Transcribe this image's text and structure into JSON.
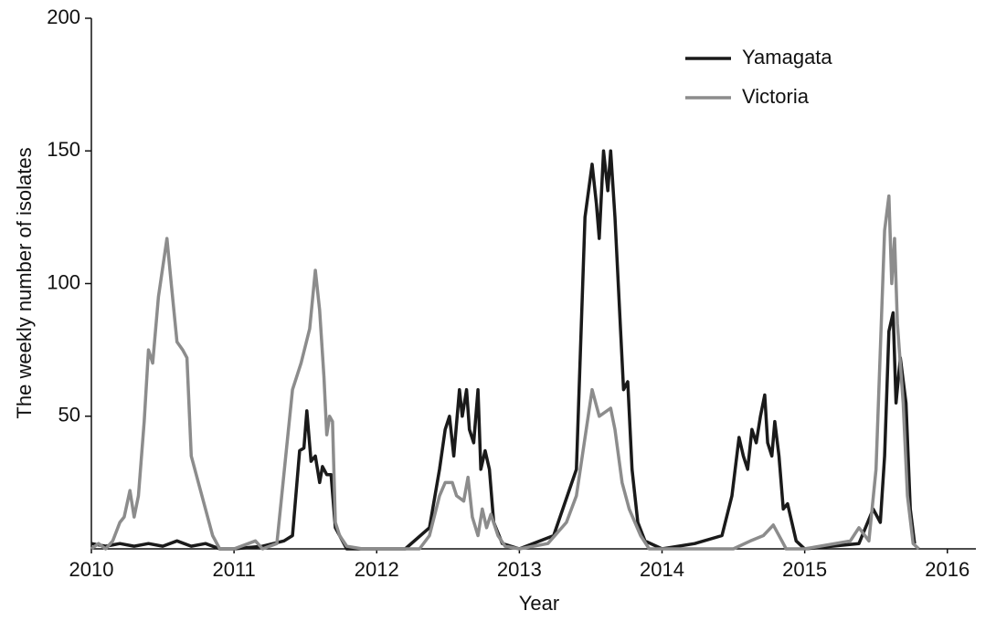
{
  "chart_data": {
    "type": "line",
    "xlabel": "Year",
    "ylabel": "The weekly number of isolates",
    "xlim": [
      2010,
      2016.2
    ],
    "xticks": [
      2010,
      2011,
      2012,
      2013,
      2014,
      2015,
      2016
    ],
    "ylim": [
      0,
      200
    ],
    "yticks": [
      50,
      100,
      150,
      200
    ],
    "legend": "upper right",
    "series": [
      {
        "name": "Yamagata",
        "color": "#1a1a1a",
        "x": [
          2010.0,
          2010.1,
          2010.2,
          2010.3,
          2010.4,
          2010.5,
          2010.6,
          2010.7,
          2010.8,
          2010.9,
          2011.0,
          2011.2,
          2011.35,
          2011.41,
          2011.46,
          2011.49,
          2011.51,
          2011.54,
          2011.57,
          2011.6,
          2011.62,
          2011.65,
          2011.68,
          2011.71,
          2011.74,
          2011.79,
          2012.0,
          2012.2,
          2012.37,
          2012.44,
          2012.48,
          2012.51,
          2012.54,
          2012.58,
          2012.6,
          2012.63,
          2012.65,
          2012.68,
          2012.71,
          2012.73,
          2012.76,
          2012.79,
          2012.82,
          2012.88,
          2013.0,
          2013.24,
          2013.4,
          2013.46,
          2013.51,
          2013.54,
          2013.56,
          2013.59,
          2013.62,
          2013.64,
          2013.67,
          2013.71,
          2013.73,
          2013.76,
          2013.79,
          2013.83,
          2013.88,
          2014.0,
          2014.23,
          2014.42,
          2014.49,
          2014.54,
          2014.57,
          2014.6,
          2014.63,
          2014.66,
          2014.69,
          2014.72,
          2014.74,
          2014.77,
          2014.79,
          2014.82,
          2014.85,
          2014.88,
          2014.94,
          2015.0,
          2015.38,
          2015.48,
          2015.53,
          2015.56,
          2015.59,
          2015.62,
          2015.64,
          2015.67,
          2015.71,
          2015.74,
          2015.77
        ],
        "values": [
          2,
          1,
          2,
          1,
          2,
          1,
          3,
          1,
          2,
          0,
          0,
          1,
          3,
          5,
          37,
          38,
          52,
          33,
          35,
          25,
          31,
          28,
          28,
          8,
          5,
          0,
          0,
          0,
          8,
          30,
          45,
          50,
          35,
          60,
          50,
          60,
          45,
          40,
          60,
          30,
          37,
          30,
          10,
          2,
          0,
          5,
          30,
          125,
          145,
          130,
          117,
          150,
          135,
          150,
          125,
          82,
          60,
          63,
          30,
          10,
          3,
          0,
          2,
          5,
          20,
          42,
          35,
          30,
          45,
          40,
          50,
          58,
          40,
          35,
          48,
          35,
          15,
          17,
          3,
          0,
          2,
          15,
          10,
          35,
          82,
          89,
          55,
          72,
          55,
          15,
          2
        ]
      },
      {
        "name": "Victoria",
        "color": "#8c8c8c",
        "x": [
          2010.0,
          2010.05,
          2010.1,
          2010.15,
          2010.2,
          2010.23,
          2010.27,
          2010.3,
          2010.33,
          2010.37,
          2010.4,
          2010.43,
          2010.47,
          2010.53,
          2010.56,
          2010.6,
          2010.64,
          2010.67,
          2010.7,
          2010.75,
          2010.8,
          2010.85,
          2010.9,
          2011.0,
          2011.15,
          2011.2,
          2011.3,
          2011.41,
          2011.47,
          2011.53,
          2011.57,
          2011.6,
          2011.63,
          2011.65,
          2011.67,
          2011.69,
          2011.71,
          2011.74,
          2011.79,
          2011.9,
          2012.0,
          2012.3,
          2012.37,
          2012.44,
          2012.48,
          2012.53,
          2012.56,
          2012.61,
          2012.64,
          2012.67,
          2012.71,
          2012.74,
          2012.77,
          2012.8,
          2012.85,
          2012.9,
          2013.0,
          2013.2,
          2013.33,
          2013.4,
          2013.51,
          2013.56,
          2013.64,
          2013.67,
          2013.72,
          2013.77,
          2013.85,
          2013.91,
          2014.0,
          2014.5,
          2014.62,
          2014.71,
          2014.78,
          2014.84,
          2014.87,
          2015.0,
          2015.32,
          2015.38,
          2015.45,
          2015.5,
          2015.56,
          2015.59,
          2015.61,
          2015.63,
          2015.65,
          2015.69,
          2015.72,
          2015.76,
          2015.8
        ],
        "values": [
          0,
          2,
          0,
          3,
          10,
          12,
          22,
          12,
          20,
          48,
          75,
          70,
          95,
          117,
          100,
          78,
          75,
          72,
          35,
          25,
          15,
          5,
          0,
          0,
          3,
          0,
          2,
          60,
          70,
          83,
          105,
          90,
          65,
          43,
          50,
          48,
          10,
          5,
          1,
          0,
          0,
          0,
          5,
          20,
          25,
          25,
          20,
          18,
          27,
          12,
          5,
          15,
          8,
          13,
          5,
          1,
          0,
          2,
          10,
          20,
          60,
          50,
          53,
          45,
          25,
          15,
          5,
          0,
          0,
          0,
          3,
          5,
          9,
          3,
          0,
          0,
          3,
          8,
          3,
          30,
          120,
          133,
          100,
          117,
          85,
          55,
          20,
          2,
          0
        ]
      }
    ]
  }
}
